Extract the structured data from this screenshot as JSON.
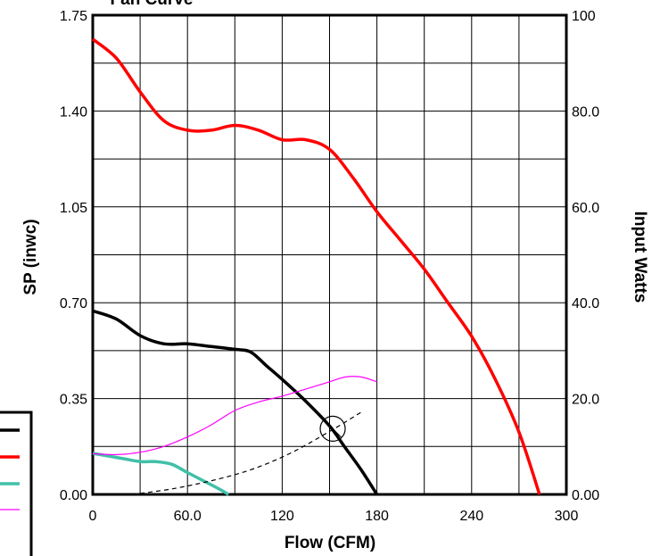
{
  "chart_data": {
    "type": "line",
    "title": "Fan Curve",
    "xlabel": "Flow (CFM)",
    "ylabel": "SP (inwc)",
    "y2label": "Input Watts",
    "xlim": [
      0,
      300
    ],
    "ylim": [
      0,
      1.75
    ],
    "y2lim": [
      0,
      100
    ],
    "x_ticks": [
      "0",
      "60.0",
      "120",
      "180",
      "240",
      "300"
    ],
    "y_ticks": [
      "0.00",
      "0.35",
      "0.70",
      "1.05",
      "1.40",
      "1.75"
    ],
    "y2_ticks": [
      "0.00",
      "20.0",
      "40.0",
      "60.0",
      "80.0",
      "100"
    ],
    "grid": true,
    "series": [
      {
        "axis": "left",
        "color": "#000000",
        "width": 3.5,
        "x": [
          0,
          15,
          30,
          45,
          60,
          75,
          90,
          100,
          110,
          120,
          135,
          150,
          160,
          170,
          180
        ],
        "y": [
          0.67,
          0.64,
          0.58,
          0.55,
          0.55,
          0.54,
          0.53,
          0.52,
          0.47,
          0.42,
          0.34,
          0.25,
          0.17,
          0.09,
          0.0
        ]
      },
      {
        "axis": "right",
        "color": "#ff0000",
        "width": 3.5,
        "x": [
          0,
          15,
          30,
          45,
          60,
          75,
          90,
          105,
          120,
          135,
          150,
          165,
          180,
          195,
          210,
          225,
          240,
          255,
          270,
          283
        ],
        "y": [
          95,
          91,
          84,
          78,
          76,
          76,
          77,
          76,
          74,
          74,
          72,
          66,
          59,
          53,
          47,
          40,
          33,
          24,
          13,
          0
        ]
      },
      {
        "axis": "left",
        "color": "#40c0a8",
        "width": 3.5,
        "x": [
          0,
          10,
          20,
          30,
          40,
          50,
          60,
          70,
          80,
          86
        ],
        "y": [
          0.15,
          0.14,
          0.13,
          0.12,
          0.12,
          0.11,
          0.08,
          0.05,
          0.02,
          0.0
        ]
      },
      {
        "axis": "right",
        "color": "#ff00ff",
        "width": 1.2,
        "x": [
          0,
          15,
          30,
          45,
          60,
          75,
          90,
          105,
          120,
          135,
          150,
          160,
          170,
          180
        ],
        "y": [
          8.5,
          8.3,
          8.8,
          10.0,
          12.0,
          14.5,
          17.5,
          19.3,
          20.5,
          22.0,
          23.5,
          24.5,
          24.5,
          23.5
        ]
      },
      {
        "axis": "left",
        "color": "#000000",
        "width": 1.2,
        "dash": "5,4",
        "x": [
          25,
          50,
          75,
          100,
          125,
          150,
          170
        ],
        "y": [
          0.0,
          0.02,
          0.05,
          0.09,
          0.15,
          0.23,
          0.3
        ]
      }
    ],
    "operating_point": {
      "x": 152,
      "y": 0.24
    }
  }
}
